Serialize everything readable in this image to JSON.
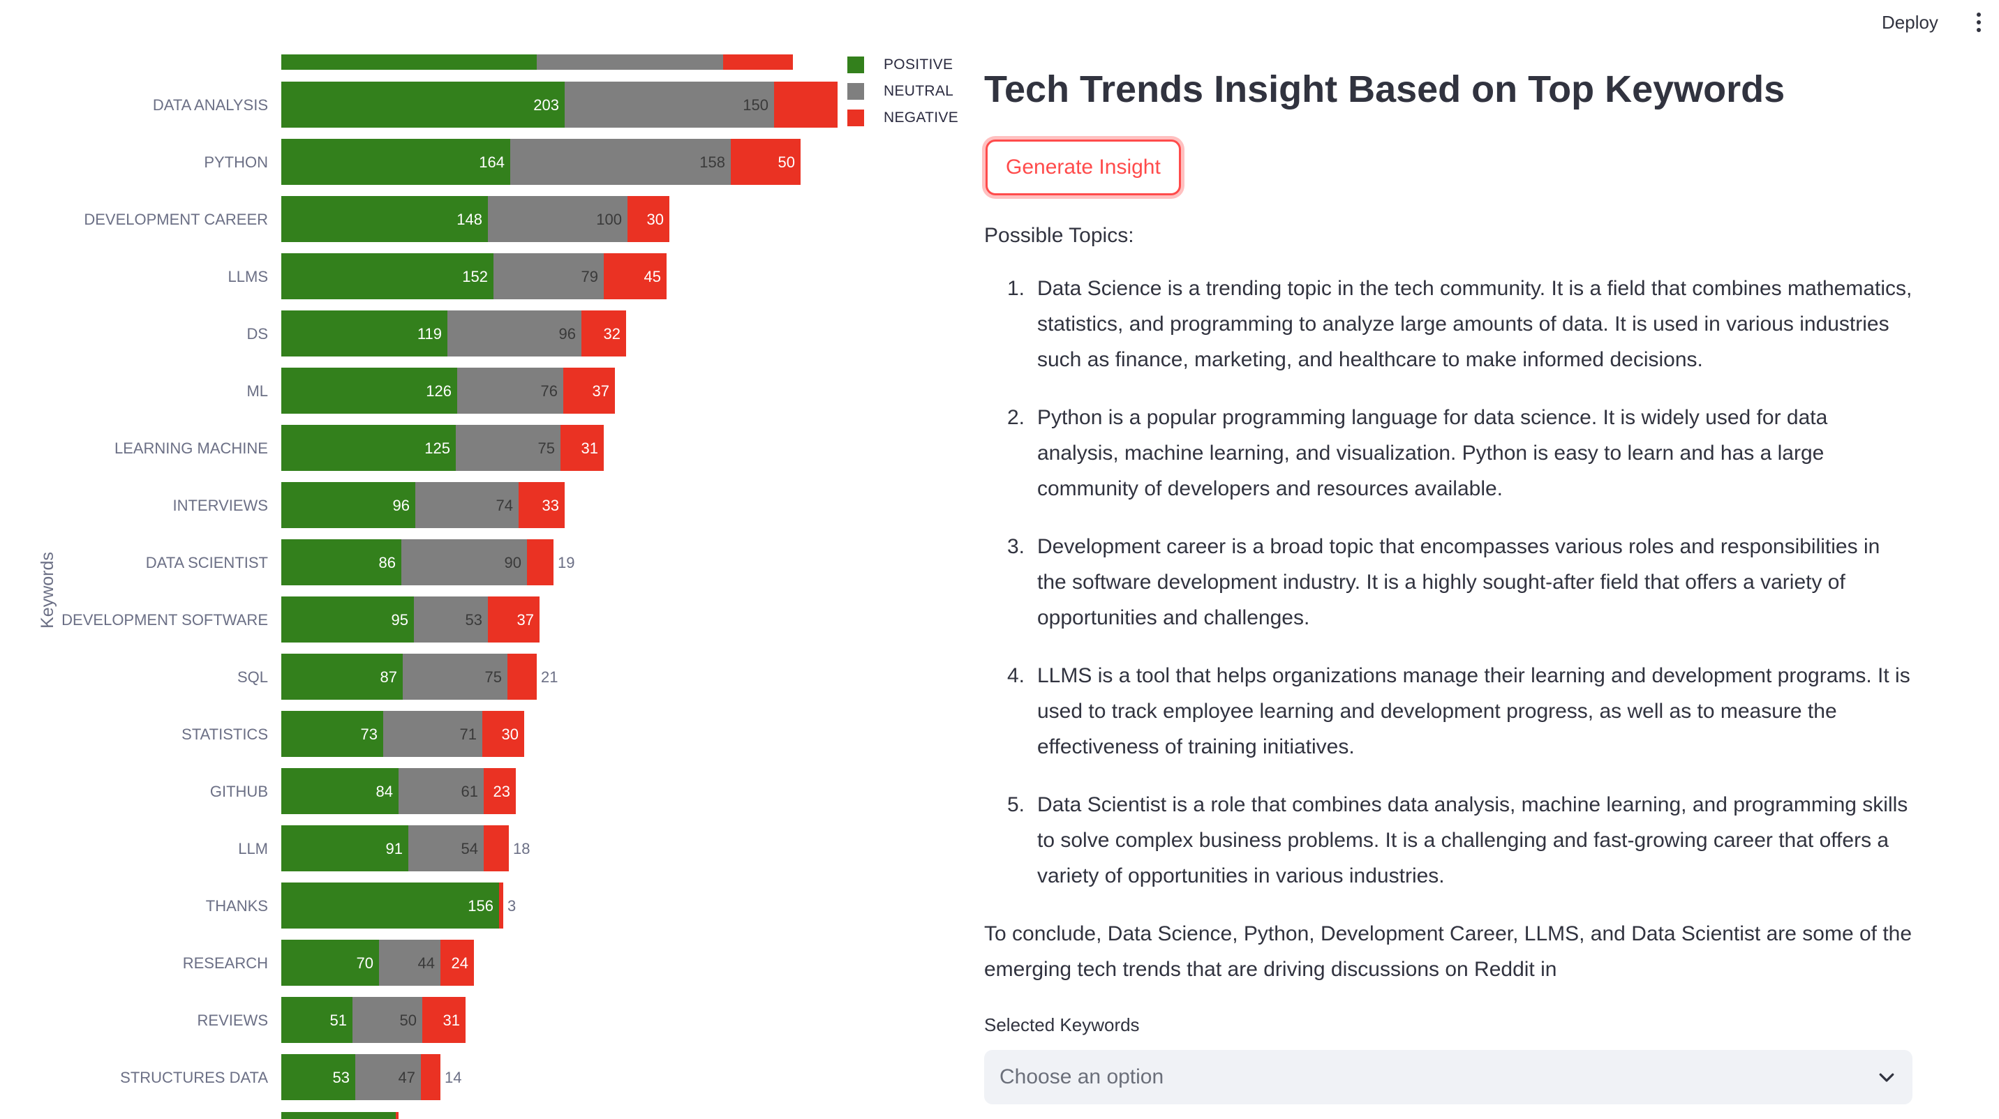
{
  "topbar": {
    "deploy_label": "Deploy",
    "menu_icon": "kebab-menu-icon"
  },
  "chart_data": {
    "type": "bar",
    "orientation": "horizontal",
    "stacked": true,
    "ylabel": "Keywords",
    "legend_position": "top-right",
    "series": [
      {
        "name": "POSITIVE",
        "color": "#33801c",
        "values": [
          203,
          164,
          148,
          152,
          119,
          126,
          125,
          96,
          86,
          95,
          87,
          73,
          84,
          91,
          156,
          70,
          51,
          53
        ]
      },
      {
        "name": "NEUTRAL",
        "color": "#7f7f7f",
        "values": [
          150,
          158,
          100,
          79,
          96,
          76,
          75,
          74,
          90,
          53,
          75,
          71,
          61,
          54,
          0,
          44,
          50,
          47
        ]
      },
      {
        "name": "NEGATIVE",
        "color": "#ea3223",
        "values": [
          84,
          50,
          30,
          45,
          32,
          37,
          31,
          33,
          19,
          37,
          21,
          30,
          23,
          18,
          3,
          24,
          31,
          14
        ]
      }
    ],
    "categories": [
      "DATA ANALYSIS",
      "PYTHON",
      "DEVELOPMENT CAREER",
      "LLMS",
      "DS",
      "ML",
      "LEARNING MACHINE",
      "INTERVIEWS",
      "DATA SCIENTIST",
      "DEVELOPMENT SOFTWARE",
      "SQL",
      "STATISTICS",
      "GITHUB",
      "LLM",
      "THANKS",
      "RESEARCH",
      "REVIEWS",
      "STRUCTURES DATA"
    ]
  },
  "legend": [
    {
      "label": "POSITIVE",
      "color": "#33801c"
    },
    {
      "label": "NEUTRAL",
      "color": "#7f7f7f"
    },
    {
      "label": "NEGATIVE",
      "color": "#ea3223"
    }
  ],
  "panel": {
    "title": "Tech Trends Insight Based on Top Keywords",
    "generate_label": "Generate Insight",
    "topics_heading": "Possible Topics:",
    "topics": [
      {
        "num": "1.",
        "text": "Data Science is a trending topic in the tech community. It is a field that combines mathematics, statistics, and programming to analyze large amounts of data. It is used in various industries such as finance, marketing, and healthcare to make informed decisions."
      },
      {
        "num": "2.",
        "text": "Python is a popular programming language for data science. It is widely used for data analysis, machine learning, and visualization. Python is easy to learn and has a large community of developers and resources available."
      },
      {
        "num": "3.",
        "text": "Development career is a broad topic that encompasses various roles and responsibilities in the software development industry. It is a highly sought-after field that offers a variety of opportunities and challenges."
      },
      {
        "num": "4.",
        "text": "LLMS is a tool that helps organizations manage their learning and development programs. It is used to track employee learning and development progress, as well as to measure the effectiveness of training initiatives."
      },
      {
        "num": "5.",
        "text": "Data Scientist is a role that combines data analysis, machine learning, and programming skills to solve complex business problems. It is a challenging and fast-growing career that offers a variety of opportunities in various industries."
      }
    ],
    "conclusion": "To conclude, Data Science, Python, Development Career, LLMS, and Data Scientist are some of the emerging tech trends that are driving discussions on Reddit in",
    "selected_keywords_label": "Selected Keywords",
    "select_placeholder": "Choose an option"
  }
}
